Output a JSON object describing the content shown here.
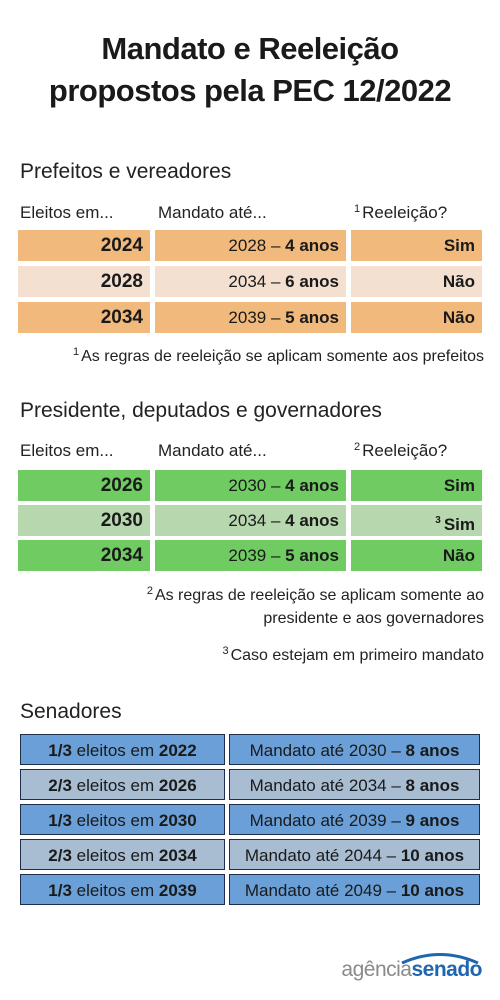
{
  "title_line1": "Mandato e Reeleição",
  "title_line2": "propostos pela PEC 12/2022",
  "prefeitos": {
    "title": "Prefeitos e vereadores",
    "col1": "Eleitos em...",
    "col2": "Mandato até...",
    "col3_sup": "1",
    "col3": "Reeleição?",
    "rows": [
      {
        "year": "2024",
        "mandate_year": "2028 –",
        "mandate_len": "4 anos",
        "reelection": "Sim"
      },
      {
        "year": "2028",
        "mandate_year": "2034 –",
        "mandate_len": "6 anos",
        "reelection": "Não"
      },
      {
        "year": "2034",
        "mandate_year": "2039 –",
        "mandate_len": "5 anos",
        "reelection": "Não"
      }
    ],
    "note_sup": "1",
    "note": "As regras de reeleição se aplicam somente aos prefeitos"
  },
  "presidente": {
    "title": "Presidente, deputados e governadores",
    "col1": "Eleitos em...",
    "col2": "Mandato até...",
    "col3_sup": "2",
    "col3": "Reeleição?",
    "rows": [
      {
        "year": "2026",
        "mandate_year": "2030 –",
        "mandate_len": "4 anos",
        "reelection_sup": "",
        "reelection": "Sim"
      },
      {
        "year": "2030",
        "mandate_year": "2034 –",
        "mandate_len": "4 anos",
        "reelection_sup": "3",
        "reelection": "Sim"
      },
      {
        "year": "2034",
        "mandate_year": "2039 –",
        "mandate_len": "5 anos",
        "reelection_sup": "",
        "reelection": "Não"
      }
    ],
    "note2_sup": "2",
    "note2_line1": "As regras de reeleição se aplicam somente ao",
    "note2_line2": "presidente e aos governadores",
    "note3_sup": "3",
    "note3": "Caso estejam em primeiro mandato"
  },
  "senadores": {
    "title": "Senadores",
    "rows": [
      {
        "fraction": "1/3",
        "text": "eleitos em",
        "year": "2022",
        "mandate_text": "Mandato até 2030 –",
        "mandate_len": "8 anos"
      },
      {
        "fraction": "2/3",
        "text": "eleitos em",
        "year": "2026",
        "mandate_text": "Mandato até 2034 –",
        "mandate_len": "8 anos"
      },
      {
        "fraction": "1/3",
        "text": "eleitos em",
        "year": "2030",
        "mandate_text": "Mandato até 2039 –",
        "mandate_len": "9 anos"
      },
      {
        "fraction": "2/3",
        "text": "eleitos em",
        "year": "2034",
        "mandate_text": "Mandato até 2044 –",
        "mandate_len": "10 anos"
      },
      {
        "fraction": "1/3",
        "text": "eleitos em",
        "year": "2039",
        "mandate_text": "Mandato até 2049 –",
        "mandate_len": "10 anos"
      }
    ]
  },
  "logo": {
    "part1": "agência",
    "part2": "senado"
  }
}
